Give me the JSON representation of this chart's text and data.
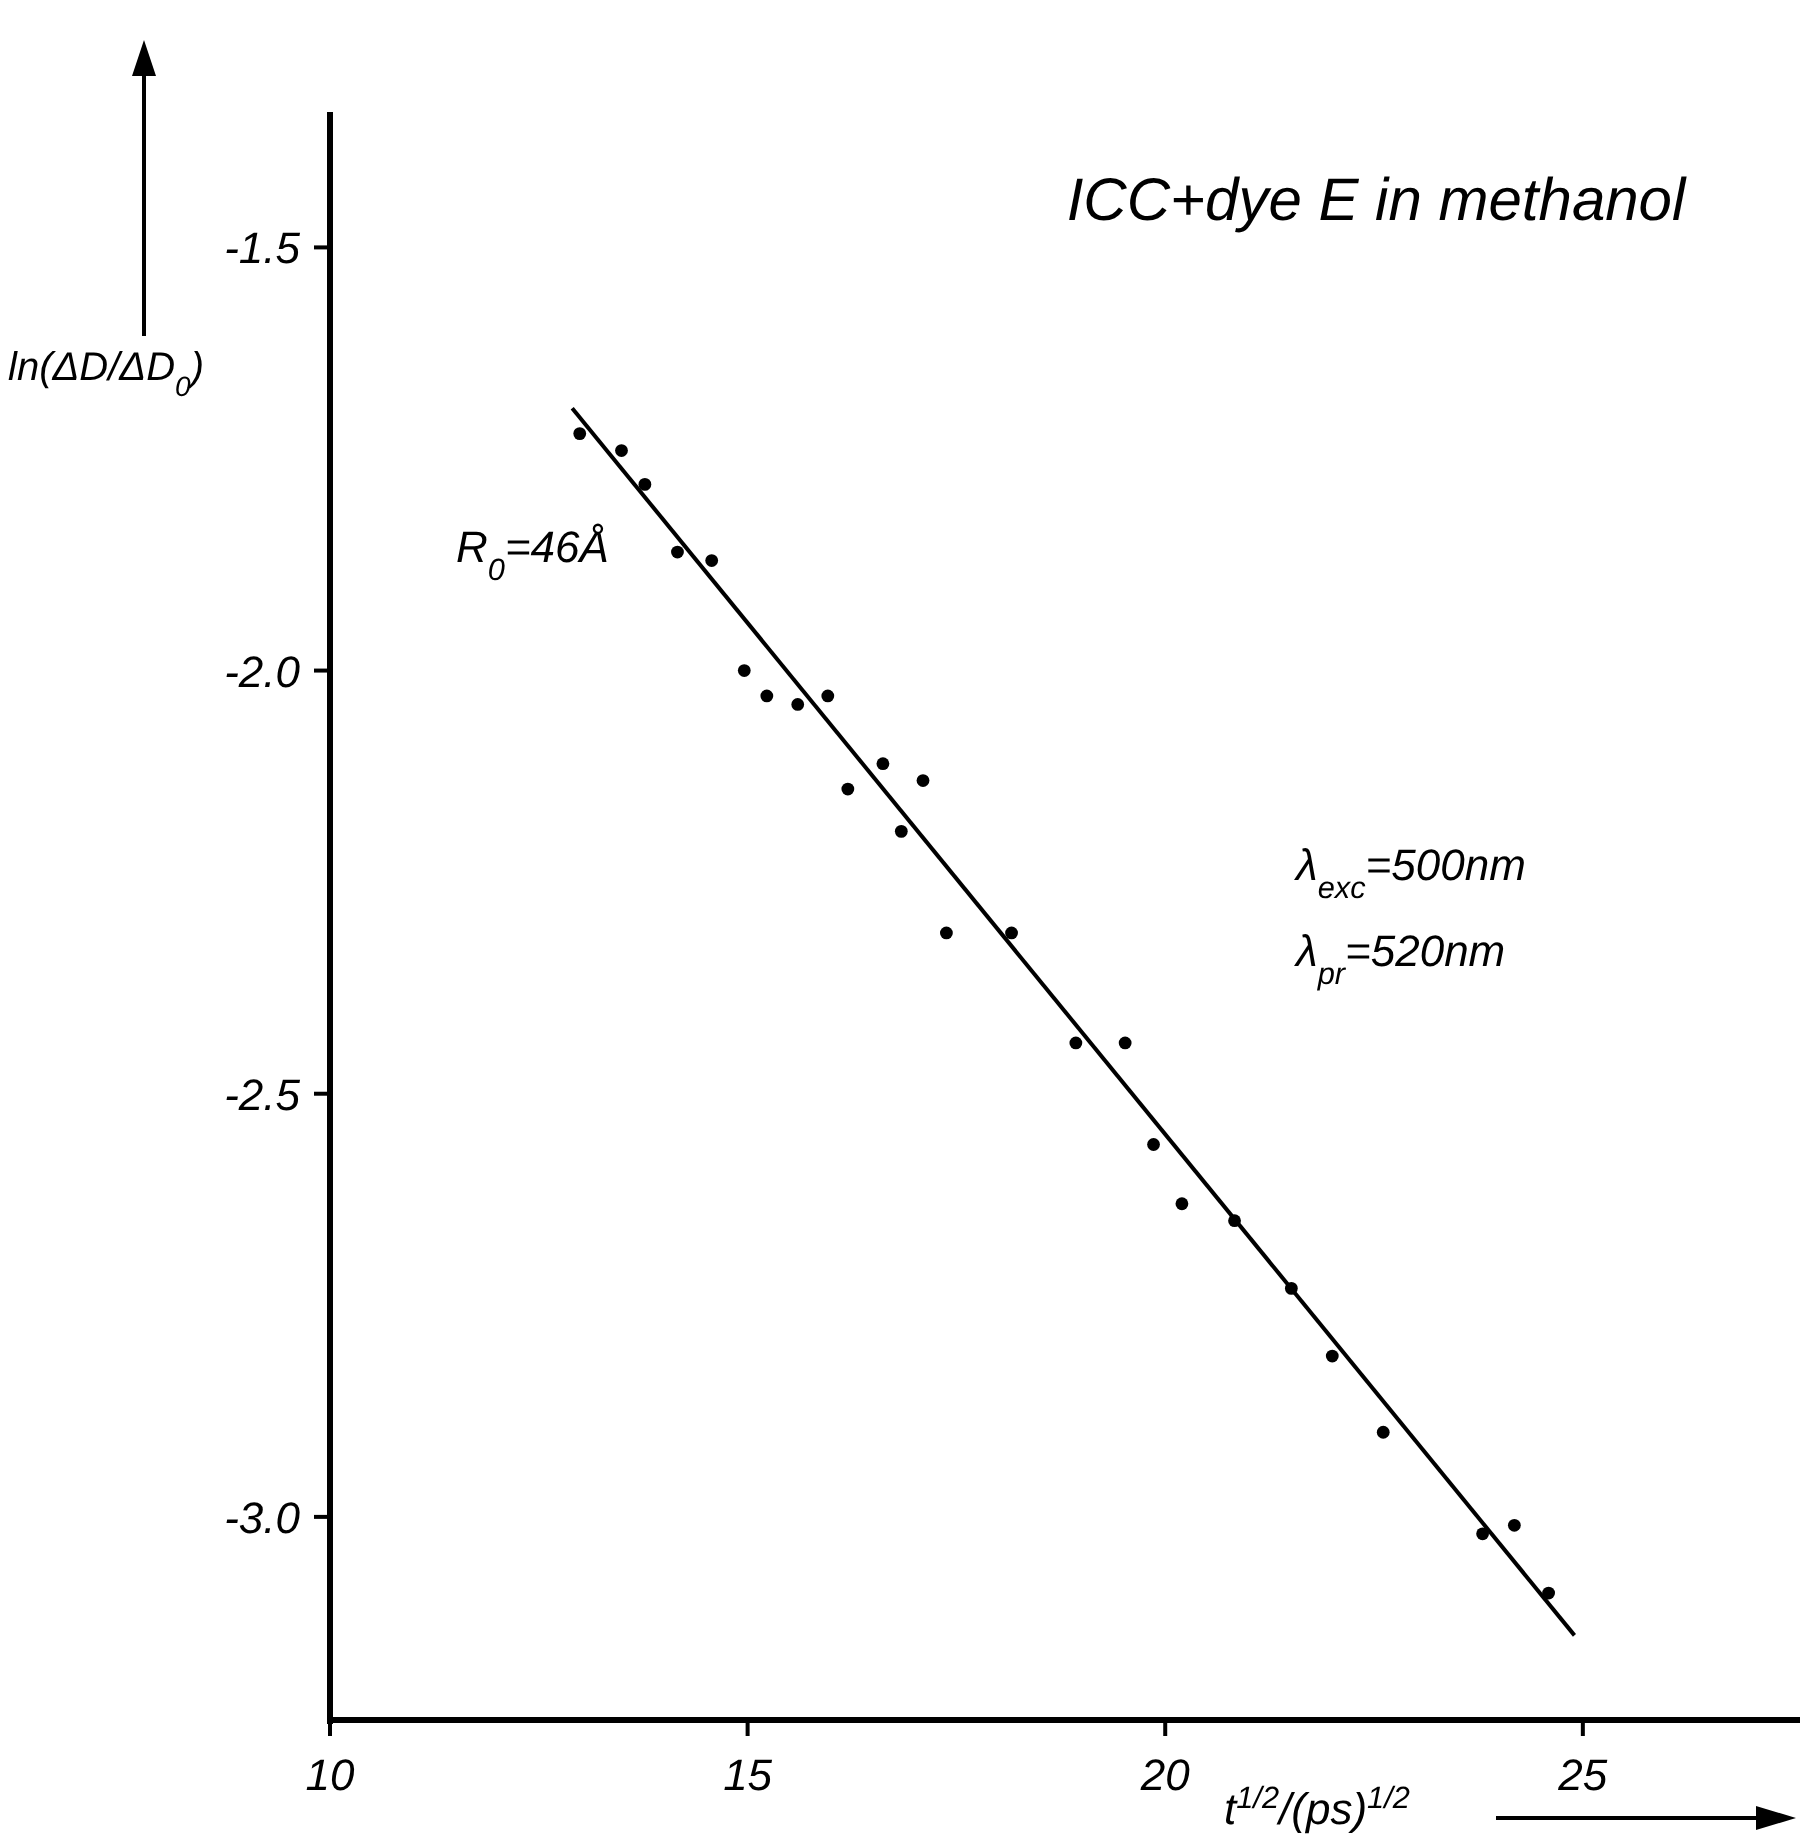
{
  "chart_data": {
    "type": "scatter",
    "title": "ICC+dye E in methanol",
    "xlabel": "t$^{1/2}$/(ps)$^{1/2}$",
    "ylabel": "ln(ΔD/ΔD$_{0}$)",
    "annotations": [
      "R$_{0}$=46Å",
      "λ$_{exc}$=500nm",
      "λ$_{pr}$=520nm"
    ],
    "xlim": [
      10,
      27.6
    ],
    "ylim": [
      -3.24,
      -1.34
    ],
    "xticks": [
      10,
      15,
      20,
      25
    ],
    "yticks": [
      {
        "value": -1.5,
        "label": "-1.5"
      },
      {
        "value": -2,
        "label": "-2.0"
      },
      {
        "value": -2.5,
        "label": "-2.5"
      },
      {
        "value": -3,
        "label": "-3.0"
      }
    ],
    "marker": "circle",
    "grid": false,
    "series": [
      {
        "color": "#000000",
        "x": [
          12.99,
          13.49,
          13.77,
          14.16,
          14.57,
          14.96,
          15.23,
          15.6,
          15.96,
          16.2,
          16.62,
          16.84,
          17.1,
          17.38,
          18.16,
          18.93,
          19.52,
          19.86,
          20.2,
          20.83,
          21.51,
          22.0,
          22.61,
          23.8,
          24.18,
          24.59
        ],
        "values": [
          -1.72,
          -1.74,
          -1.78,
          -1.86,
          -1.87,
          -2.0,
          -2.03,
          -2.04,
          -2.03,
          -2.14,
          -2.11,
          -2.19,
          -2.13,
          -2.31,
          -2.31,
          -2.44,
          -2.44,
          -2.56,
          -2.63,
          -2.65,
          -2.73,
          -2.81,
          -2.9,
          -3.02,
          -3.01,
          -3.09
        ]
      },
      {
        "type": "line",
        "color": "#000000",
        "x": [
          12.9,
          24.9
        ],
        "values": [
          -1.69,
          -3.14
        ],
        "marker": "none",
        "line_style": "solid"
      }
    ]
  }
}
